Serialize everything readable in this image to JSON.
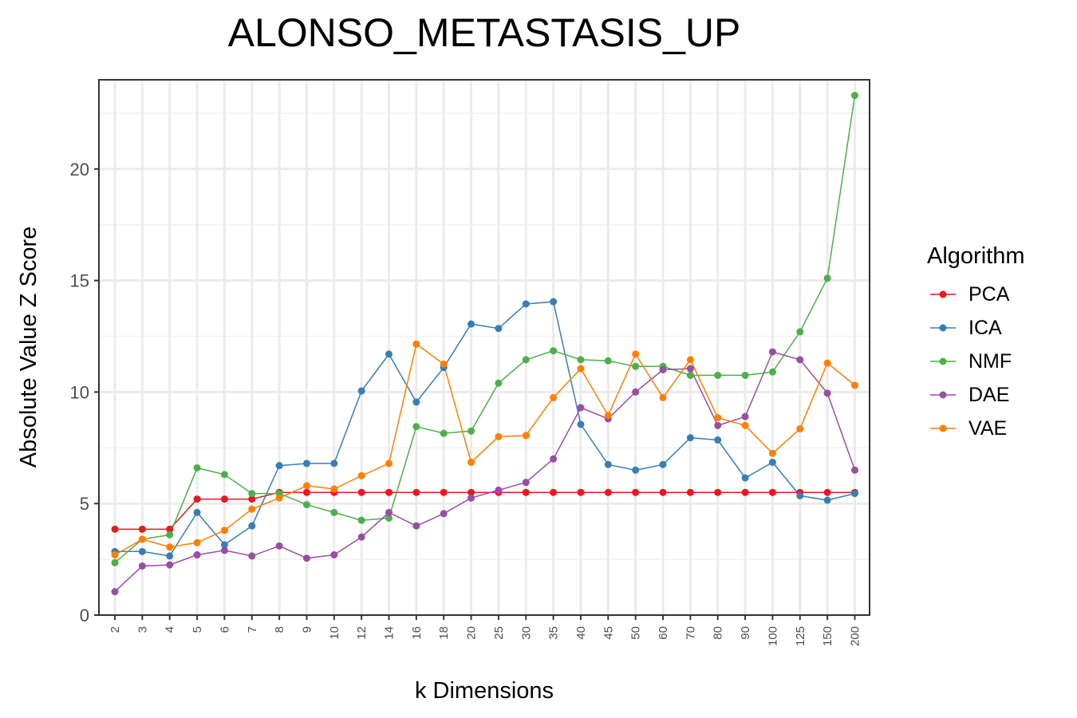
{
  "chart_data": {
    "type": "line",
    "title": "ALONSO_METASTASIS_UP",
    "xlabel": "k Dimensions",
    "ylabel": "Absolute Value Z Score",
    "categories": [
      "2",
      "3",
      "4",
      "5",
      "6",
      "7",
      "8",
      "9",
      "10",
      "12",
      "14",
      "16",
      "18",
      "20",
      "25",
      "30",
      "35",
      "40",
      "45",
      "50",
      "60",
      "70",
      "80",
      "90",
      "100",
      "125",
      "150",
      "200"
    ],
    "yticks": [
      0,
      5,
      10,
      15,
      20
    ],
    "ylim": [
      0,
      24
    ],
    "grid": true,
    "legend_title": "Algorithm",
    "legend_position": "right",
    "series": [
      {
        "name": "PCA",
        "color": "#e41a1c",
        "values": [
          3.85,
          3.85,
          3.85,
          5.2,
          5.2,
          5.2,
          5.5,
          5.5,
          5.5,
          5.5,
          5.5,
          5.5,
          5.5,
          5.5,
          5.5,
          5.5,
          5.5,
          5.5,
          5.5,
          5.5,
          5.5,
          5.5,
          5.5,
          5.5,
          5.5,
          5.5,
          5.5,
          5.5
        ]
      },
      {
        "name": "ICA",
        "color": "#377eb8",
        "values": [
          2.85,
          2.85,
          2.65,
          4.6,
          3.15,
          4.0,
          6.7,
          6.8,
          6.8,
          10.05,
          11.7,
          9.55,
          11.1,
          13.05,
          12.85,
          13.95,
          14.05,
          8.55,
          6.75,
          6.5,
          6.75,
          7.95,
          7.85,
          6.15,
          6.85,
          5.35,
          5.15,
          5.45
        ]
      },
      {
        "name": "NMF",
        "color": "#4daf4a",
        "values": [
          2.35,
          3.4,
          3.6,
          6.6,
          6.3,
          5.45,
          5.45,
          4.95,
          4.6,
          4.25,
          4.35,
          8.45,
          8.15,
          8.25,
          10.4,
          11.45,
          11.85,
          11.45,
          11.4,
          11.15,
          11.15,
          10.75,
          10.75,
          10.75,
          10.9,
          12.7,
          15.1,
          23.3
        ]
      },
      {
        "name": "DAE",
        "color": "#984ea3",
        "values": [
          1.05,
          2.2,
          2.25,
          2.7,
          2.9,
          2.65,
          3.1,
          2.55,
          2.7,
          3.5,
          4.6,
          4.0,
          4.55,
          5.25,
          5.6,
          5.95,
          7.0,
          9.3,
          8.8,
          10.0,
          11.0,
          11.05,
          8.5,
          8.9,
          11.8,
          11.45,
          9.95,
          6.5
        ]
      },
      {
        "name": "VAE",
        "color": "#ff7f00",
        "values": [
          2.7,
          3.4,
          3.05,
          3.25,
          3.8,
          4.75,
          5.25,
          5.8,
          5.65,
          6.25,
          6.8,
          12.15,
          11.25,
          6.85,
          8.0,
          8.05,
          9.75,
          11.05,
          8.95,
          11.7,
          9.75,
          11.45,
          8.85,
          8.5,
          7.25,
          8.35,
          11.3,
          10.3
        ]
      }
    ]
  }
}
